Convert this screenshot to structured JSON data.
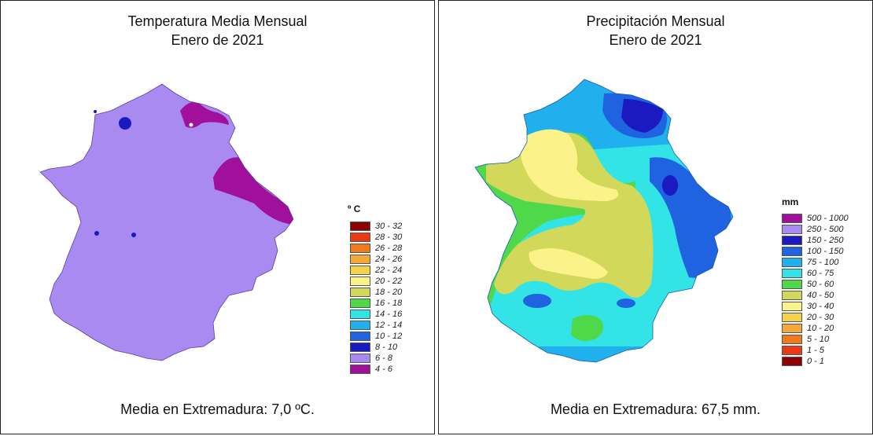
{
  "temperature_map": {
    "title_line1": "Temperatura Media Mensual",
    "title_line2": "Enero de 2021",
    "legend_unit": "º C",
    "legend": [
      {
        "label": "30 - 32",
        "color": "#8b0000"
      },
      {
        "label": "28 - 30",
        "color": "#e83a14"
      },
      {
        "label": "26 - 28",
        "color": "#f07a1c"
      },
      {
        "label": "24 - 26",
        "color": "#f5a83a"
      },
      {
        "label": "22 - 24",
        "color": "#f6d24a"
      },
      {
        "label": "20 - 22",
        "color": "#fbf38a"
      },
      {
        "label": "18 - 20",
        "color": "#d2d85a"
      },
      {
        "label": "16 - 18",
        "color": "#4ed84a"
      },
      {
        "label": "14 - 16",
        "color": "#33e4e6"
      },
      {
        "label": "12 - 14",
        "color": "#21b0ee"
      },
      {
        "label": "10 - 12",
        "color": "#1f63e0"
      },
      {
        "label": "8 - 10",
        "color": "#1a1ac0"
      },
      {
        "label": "6 - 8",
        "color": "#a98af0"
      },
      {
        "label": "4 - 6",
        "color": "#a0109a"
      }
    ],
    "footer": "Media en Extremadura: 7,0 ºC."
  },
  "precipitation_map": {
    "title_line1": "Precipitación Mensual",
    "title_line2": "Enero de 2021",
    "legend_unit": "mm",
    "legend": [
      {
        "label": "500 - 1000",
        "color": "#a0109a"
      },
      {
        "label": "250 - 500",
        "color": "#a98af0"
      },
      {
        "label": "150 - 250",
        "color": "#1a1ac0"
      },
      {
        "label": "100 - 150",
        "color": "#1f63e0"
      },
      {
        "label": "75 - 100",
        "color": "#21b0ee"
      },
      {
        "label": "60 - 75",
        "color": "#33e4e6"
      },
      {
        "label": "50 - 60",
        "color": "#4ed84a"
      },
      {
        "label": "40 - 50",
        "color": "#d2d85a"
      },
      {
        "label": "30 - 40",
        "color": "#fbf38a"
      },
      {
        "label": "20 - 30",
        "color": "#f6d24a"
      },
      {
        "label": "10 - 20",
        "color": "#f5a83a"
      },
      {
        "label": "5 - 10",
        "color": "#f07a1c"
      },
      {
        "label": "1 - 5",
        "color": "#e83a14"
      },
      {
        "label": "0 - 1",
        "color": "#8b0000"
      }
    ],
    "footer": "Media en Extremadura: 67,5 mm."
  }
}
